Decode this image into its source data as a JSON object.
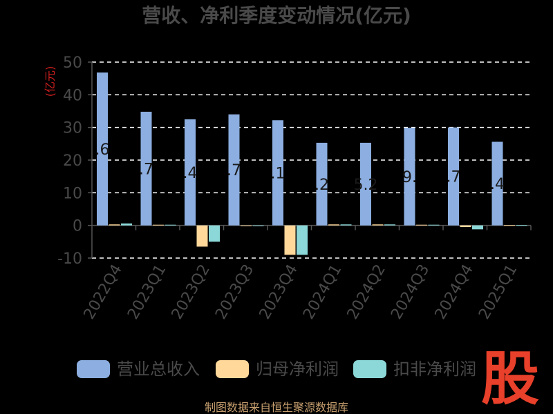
{
  "chart_data": {
    "type": "bar",
    "title": "营收、净利季度变动情况(亿元)",
    "ylabel": "(亿元)",
    "ylim": [
      -10,
      50
    ],
    "yticks": [
      -10,
      0,
      10,
      20,
      30,
      40,
      50
    ],
    "grid": true,
    "legend_position": "bottom",
    "categories": [
      "2022Q4",
      "2023Q1",
      "2023Q2",
      "2023Q3",
      "2023Q4",
      "2024Q1",
      "2024Q2",
      "2024Q3",
      "2024Q4",
      "2025Q1"
    ],
    "series": [
      {
        "name": "营业总收入",
        "color": "#8caee0",
        "values": [
          46.8,
          34.8,
          32.5,
          34.0,
          32.2,
          25.3,
          25.3,
          29.9,
          30.0,
          25.6
        ]
      },
      {
        "name": "归母净利润",
        "color": "#ffd89a",
        "values": [
          0.3,
          0.2,
          -6.5,
          -0.2,
          -9.0,
          0.3,
          0.3,
          0.2,
          -0.5,
          0.1
        ]
      },
      {
        "name": "扣非净利润",
        "color": "#8cd8d8",
        "values": [
          0.6,
          0.2,
          -5.0,
          -0.2,
          -9.0,
          0.3,
          0.3,
          0.2,
          -1.2,
          0.1
        ]
      }
    ],
    "data_labels": [
      ".6",
      ".7",
      ".4",
      ".7",
      ".1",
      ".2",
      "5.2",
      "9.",
      ".7",
      ".4"
    ]
  },
  "footer": {
    "source": "制图数据来自恒生聚源数据库",
    "logo": "股"
  }
}
